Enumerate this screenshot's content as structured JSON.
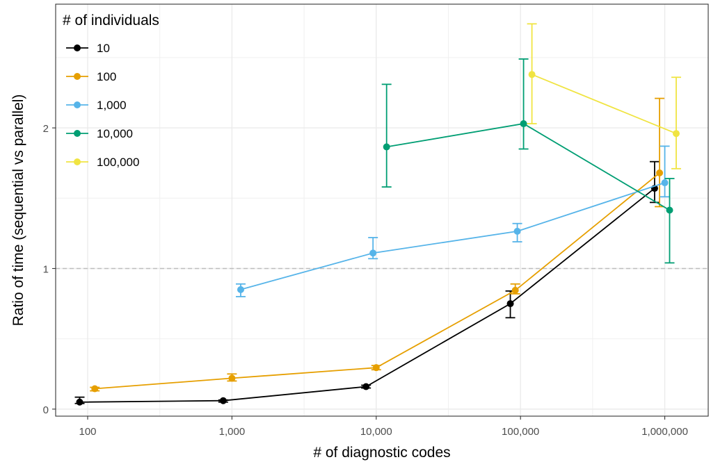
{
  "chart_data": {
    "type": "line",
    "xlabel": "# of diagnostic codes",
    "ylabel": "Ratio of time (sequential vs parallel)",
    "x_scale": "log10",
    "xlim": [
      60,
      2000000
    ],
    "ylim": [
      -0.05,
      2.88
    ],
    "x_ticks": [
      100,
      1000,
      10000,
      100000,
      1000000
    ],
    "x_tick_labels": [
      "100",
      "1,000",
      "10,000",
      "100,000",
      "1,000,000"
    ],
    "y_ticks": [
      0,
      1,
      2
    ],
    "y_tick_labels": [
      "0",
      "1",
      "2"
    ],
    "reference_line": {
      "y": 1,
      "style": "dashed",
      "color": "#bdbdbd"
    },
    "grid": true,
    "legend": {
      "title": "# of individuals",
      "position": "top-left inside"
    },
    "series": [
      {
        "name": "10",
        "color": "#000000",
        "points": [
          {
            "x": 88,
            "y": 0.05,
            "lo": 0.04,
            "hi": 0.085
          },
          {
            "x": 870,
            "y": 0.06,
            "lo": 0.05,
            "hi": 0.065
          },
          {
            "x": 8500,
            "y": 0.16,
            "lo": 0.15,
            "hi": 0.17
          },
          {
            "x": 85000,
            "y": 0.75,
            "lo": 0.65,
            "hi": 0.84
          },
          {
            "x": 850000,
            "y": 1.57,
            "lo": 1.47,
            "hi": 1.76
          }
        ]
      },
      {
        "name": "100",
        "color": "#E69F00",
        "points": [
          {
            "x": 112,
            "y": 0.145,
            "lo": 0.13,
            "hi": 0.155
          },
          {
            "x": 1000,
            "y": 0.22,
            "lo": 0.2,
            "hi": 0.25
          },
          {
            "x": 10000,
            "y": 0.295,
            "lo": 0.28,
            "hi": 0.31
          },
          {
            "x": 92000,
            "y": 0.845,
            "lo": 0.82,
            "hi": 0.89
          },
          {
            "x": 920000,
            "y": 1.68,
            "lo": 1.44,
            "hi": 2.21
          }
        ]
      },
      {
        "name": "1,000",
        "color": "#56B4E9",
        "points": [
          {
            "x": 1150,
            "y": 0.85,
            "lo": 0.8,
            "hi": 0.89
          },
          {
            "x": 9500,
            "y": 1.11,
            "lo": 1.07,
            "hi": 1.22
          },
          {
            "x": 95000,
            "y": 1.265,
            "lo": 1.19,
            "hi": 1.32
          },
          {
            "x": 1000000,
            "y": 1.61,
            "lo": 1.51,
            "hi": 1.87
          }
        ]
      },
      {
        "name": "10,000",
        "color": "#009E73",
        "points": [
          {
            "x": 11800,
            "y": 1.865,
            "lo": 1.58,
            "hi": 2.31
          },
          {
            "x": 105000,
            "y": 2.03,
            "lo": 1.85,
            "hi": 2.49
          },
          {
            "x": 1080000,
            "y": 1.415,
            "lo": 1.04,
            "hi": 1.64
          }
        ]
      },
      {
        "name": "100,000",
        "color": "#F0E442",
        "points": [
          {
            "x": 120000,
            "y": 2.38,
            "lo": 2.03,
            "hi": 2.74
          },
          {
            "x": 1200000,
            "y": 1.96,
            "lo": 1.71,
            "hi": 2.36
          }
        ]
      }
    ]
  }
}
